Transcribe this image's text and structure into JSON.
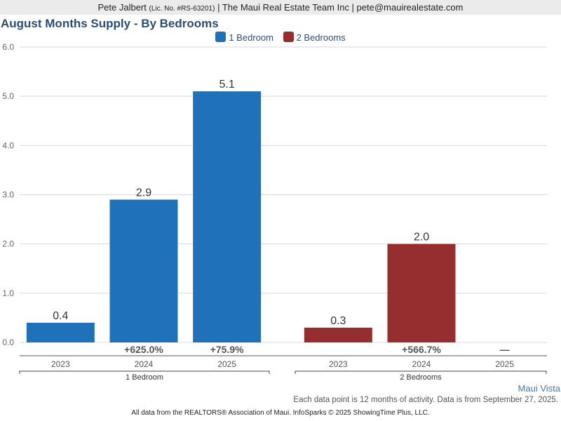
{
  "header": {
    "agent_name": "Pete Jalbert",
    "license": "(Lic. No. #RS-63201)",
    "rest": "| The Maui Real Estate Team Inc | pete@mauirealestate.com"
  },
  "footer": {
    "area_link": "Maui Vista",
    "note": "Each data point is 12 months of activity. Data is from September 27, 2025.",
    "credit": "All data from the REALTORS® Association of Maui. InfoSparks © 2025 ShowingTime Plus, LLC."
  },
  "chart_data": {
    "type": "bar",
    "title": "August Months Supply - By Bedrooms",
    "xlabel": "",
    "ylabel": "",
    "ylim": [
      0,
      6
    ],
    "yticks": [
      "0.0",
      "1.0",
      "2.0",
      "3.0",
      "4.0",
      "5.0",
      "6.0"
    ],
    "grid": true,
    "legend_position": "top-center",
    "legend": [
      {
        "name": "1 Bedroom",
        "color": "#1f72b8"
      },
      {
        "name": "2 Bedrooms",
        "color": "#962e2f"
      }
    ],
    "categories": [
      "2023",
      "2024",
      "2025"
    ],
    "groups": [
      {
        "name": "1 Bedroom",
        "color": "#1f72b8",
        "values": [
          0.4,
          2.9,
          5.1
        ],
        "value_labels": [
          "0.4",
          "2.9",
          "5.1"
        ],
        "changes": [
          "",
          "+625.0%",
          "+75.9%"
        ]
      },
      {
        "name": "2 Bedrooms",
        "color": "#962e2f",
        "values": [
          0.3,
          2.0,
          null
        ],
        "value_labels": [
          "0.3",
          "2.0",
          ""
        ],
        "changes": [
          "",
          "+566.7%",
          "—"
        ]
      }
    ]
  }
}
